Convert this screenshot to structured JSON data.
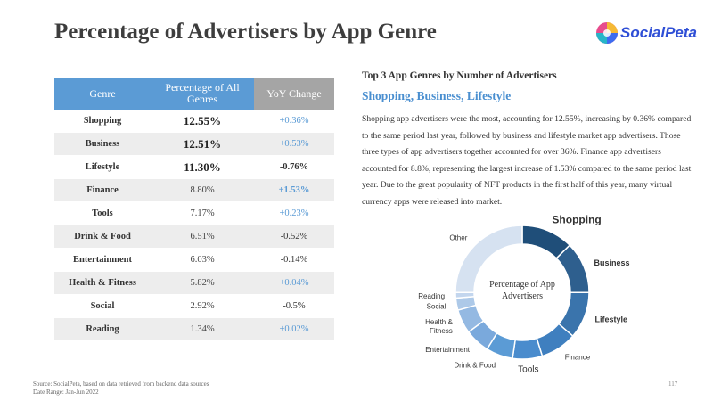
{
  "title": "Percentage of Advertisers by App Genre",
  "logo": {
    "text": "SocialPeta"
  },
  "table": {
    "headers": [
      "Genre",
      "Percentage of All Genres",
      "YoY Change"
    ],
    "rows": [
      {
        "genre": "Shopping",
        "pct": "12.55%",
        "yoy": "+0.36%",
        "big": true,
        "up": true,
        "bold_yoy": false
      },
      {
        "genre": "Business",
        "pct": "12.51%",
        "yoy": "+0.53%",
        "big": true,
        "up": true,
        "bold_yoy": false
      },
      {
        "genre": "Lifestyle",
        "pct": "11.30%",
        "yoy": "-0.76%",
        "big": true,
        "up": false,
        "bold_yoy": true
      },
      {
        "genre": "Finance",
        "pct": "8.80%",
        "yoy": "+1.53%",
        "big": false,
        "up": true,
        "bold_yoy": true
      },
      {
        "genre": "Tools",
        "pct": "7.17%",
        "yoy": "+0.23%",
        "big": false,
        "up": true,
        "bold_yoy": false
      },
      {
        "genre": "Drink & Food",
        "pct": "6.51%",
        "yoy": "-0.52%",
        "big": false,
        "up": false,
        "bold_yoy": false
      },
      {
        "genre": "Entertainment",
        "pct": "6.03%",
        "yoy": "-0.14%",
        "big": false,
        "up": false,
        "bold_yoy": false
      },
      {
        "genre": "Health & Fitness",
        "pct": "5.82%",
        "yoy": "+0.04%",
        "big": false,
        "up": true,
        "bold_yoy": false
      },
      {
        "genre": "Social",
        "pct": "2.92%",
        "yoy": "-0.5%",
        "big": false,
        "up": false,
        "bold_yoy": false
      },
      {
        "genre": "Reading",
        "pct": "1.34%",
        "yoy": "+0.02%",
        "big": false,
        "up": true,
        "bold_yoy": false
      }
    ]
  },
  "summary": {
    "heading": "Top 3 App Genres by Number of Advertisers",
    "highlight": "Shopping, Business, Lifestyle",
    "paragraph": "Shopping app advertisers were the most, accounting for 12.55%, increasing by 0.36% compared to the same period last year, followed by business and lifestyle market app advertisers. Those three types of app advertisers together accounted for over 36%. Finance app advertisers accounted for 8.8%, representing the largest increase of 1.53% compared to the same period last year. Due to the great popularity of NFT products in the first half of this year, many virtual currency apps were released into market."
  },
  "chart_data": {
    "type": "pie",
    "center_label": "Percentage of App Advertisers",
    "slices": [
      {
        "label": "Shopping",
        "value": 12.55,
        "color": "#1f4e79"
      },
      {
        "label": "Business",
        "value": 12.51,
        "color": "#2e5f8e"
      },
      {
        "label": "Lifestyle",
        "value": 11.3,
        "color": "#3a74ac"
      },
      {
        "label": "Finance",
        "value": 8.8,
        "color": "#3f7fbf"
      },
      {
        "label": "Tools",
        "value": 7.17,
        "color": "#4a8ccd"
      },
      {
        "label": "Drink & Food",
        "value": 6.51,
        "color": "#5b9bd5"
      },
      {
        "label": "Entertainment",
        "value": 6.03,
        "color": "#7aa9dc"
      },
      {
        "label": "Health & Fitness",
        "value": 5.82,
        "color": "#94b9e2"
      },
      {
        "label": "Social",
        "value": 2.92,
        "color": "#adc9e8"
      },
      {
        "label": "Reading",
        "value": 1.34,
        "color": "#c3d6ee"
      },
      {
        "label": "Other",
        "value": 25.05,
        "color": "#d6e2f1"
      }
    ]
  },
  "footer": {
    "source": "Source: SocialPeta, based on data retrieved from backend data sources",
    "date_range": "Date Range: Jan-Jun 2022",
    "page": "117"
  }
}
